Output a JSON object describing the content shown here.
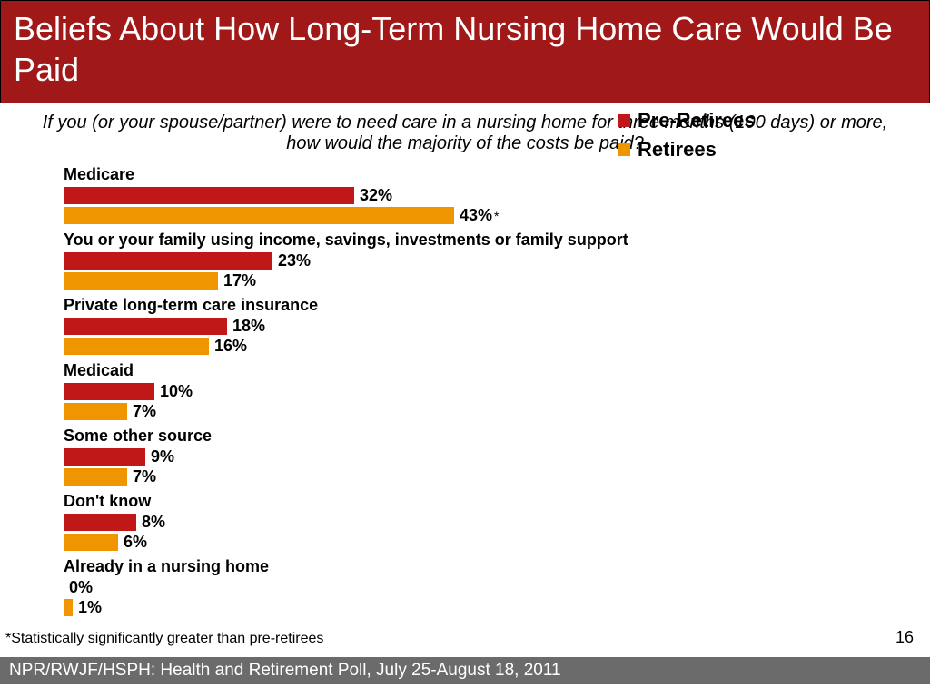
{
  "header": {
    "title": "Beliefs About How Long-Term Nursing Home Care Would Be Paid"
  },
  "subtitle": "If you (or your spouse/partner) were to need care in a nursing home for three months (100 days) or more, how would the majority of the costs be paid?",
  "chart": {
    "type": "bar",
    "scale": 10,
    "colors": {
      "pre": "#c01818",
      "ret": "#ef9500"
    },
    "groups": [
      {
        "label": "Medicare",
        "pre": 32,
        "ret": 43,
        "star": true
      },
      {
        "label": "You or your family using income, savings, investments or family support",
        "pre": 23,
        "ret": 17
      },
      {
        "label": "Private long-term care insurance",
        "pre": 18,
        "ret": 16
      },
      {
        "label": "Medicaid",
        "pre": 10,
        "ret": 7
      },
      {
        "label": "Some other source",
        "pre": 9,
        "ret": 7
      },
      {
        "label": "Don't know",
        "pre": 8,
        "ret": 6
      },
      {
        "label": "Already in a nursing home",
        "pre": 0,
        "ret": 1
      }
    ]
  },
  "legend": {
    "pre": "Pre-Retirees",
    "ret": "Retirees"
  },
  "footnote": "*Statistically significantly greater than pre-retirees",
  "page": "16",
  "source": "NPR/RWJF/HSPH: Health and Retirement Poll, July 25-August 18, 2011"
}
